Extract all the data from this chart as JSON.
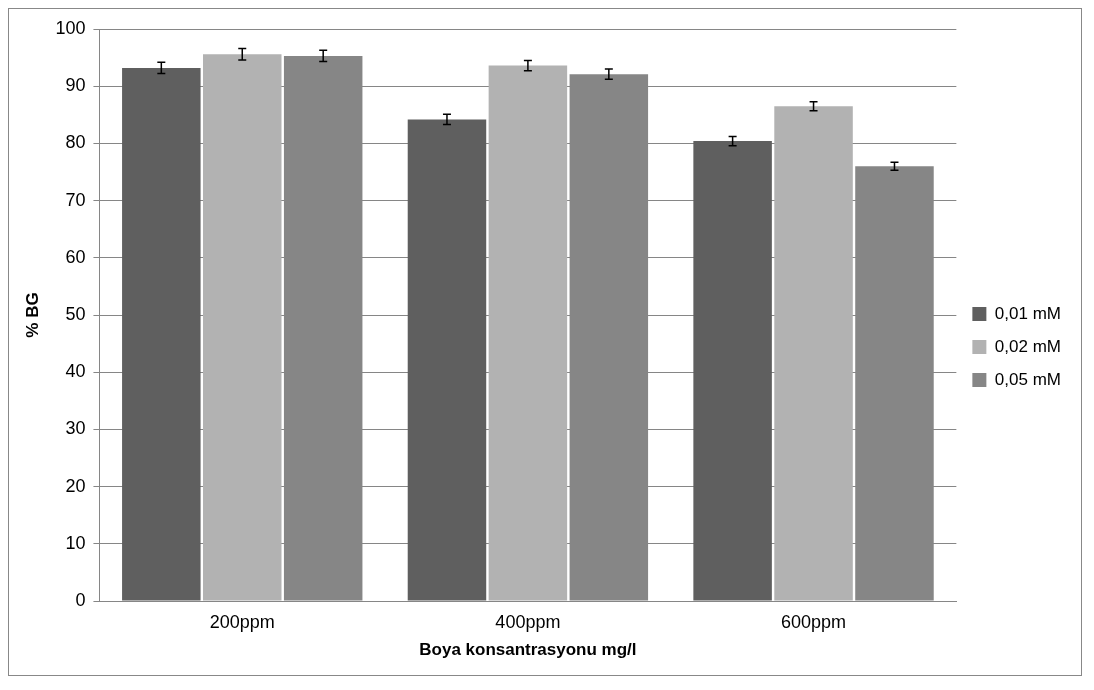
{
  "chart_data": {
    "type": "bar",
    "xlabel": "Boya konsantrasyonu mg/l",
    "ylabel": "% BG",
    "categories": [
      "200ppm",
      "400ppm",
      "600ppm"
    ],
    "series": [
      {
        "name": "0,01 mM",
        "color": "#5f5f5f",
        "values": [
          93.2,
          84.2,
          80.4
        ],
        "errors": [
          1,
          0.9,
          0.8
        ]
      },
      {
        "name": "0,02 mM",
        "color": "#b2b2b2",
        "values": [
          95.6,
          93.6,
          86.5
        ],
        "errors": [
          1,
          0.9,
          0.8
        ]
      },
      {
        "name": "0,05 mM",
        "color": "#868686",
        "values": [
          95.3,
          92.1,
          76.0
        ],
        "errors": [
          1,
          0.9,
          0.7
        ]
      }
    ],
    "ylim": [
      0,
      100
    ],
    "yticks": [
      0,
      10,
      20,
      30,
      40,
      50,
      60,
      70,
      80,
      90,
      100
    ],
    "grid": "y",
    "legend": "right"
  }
}
